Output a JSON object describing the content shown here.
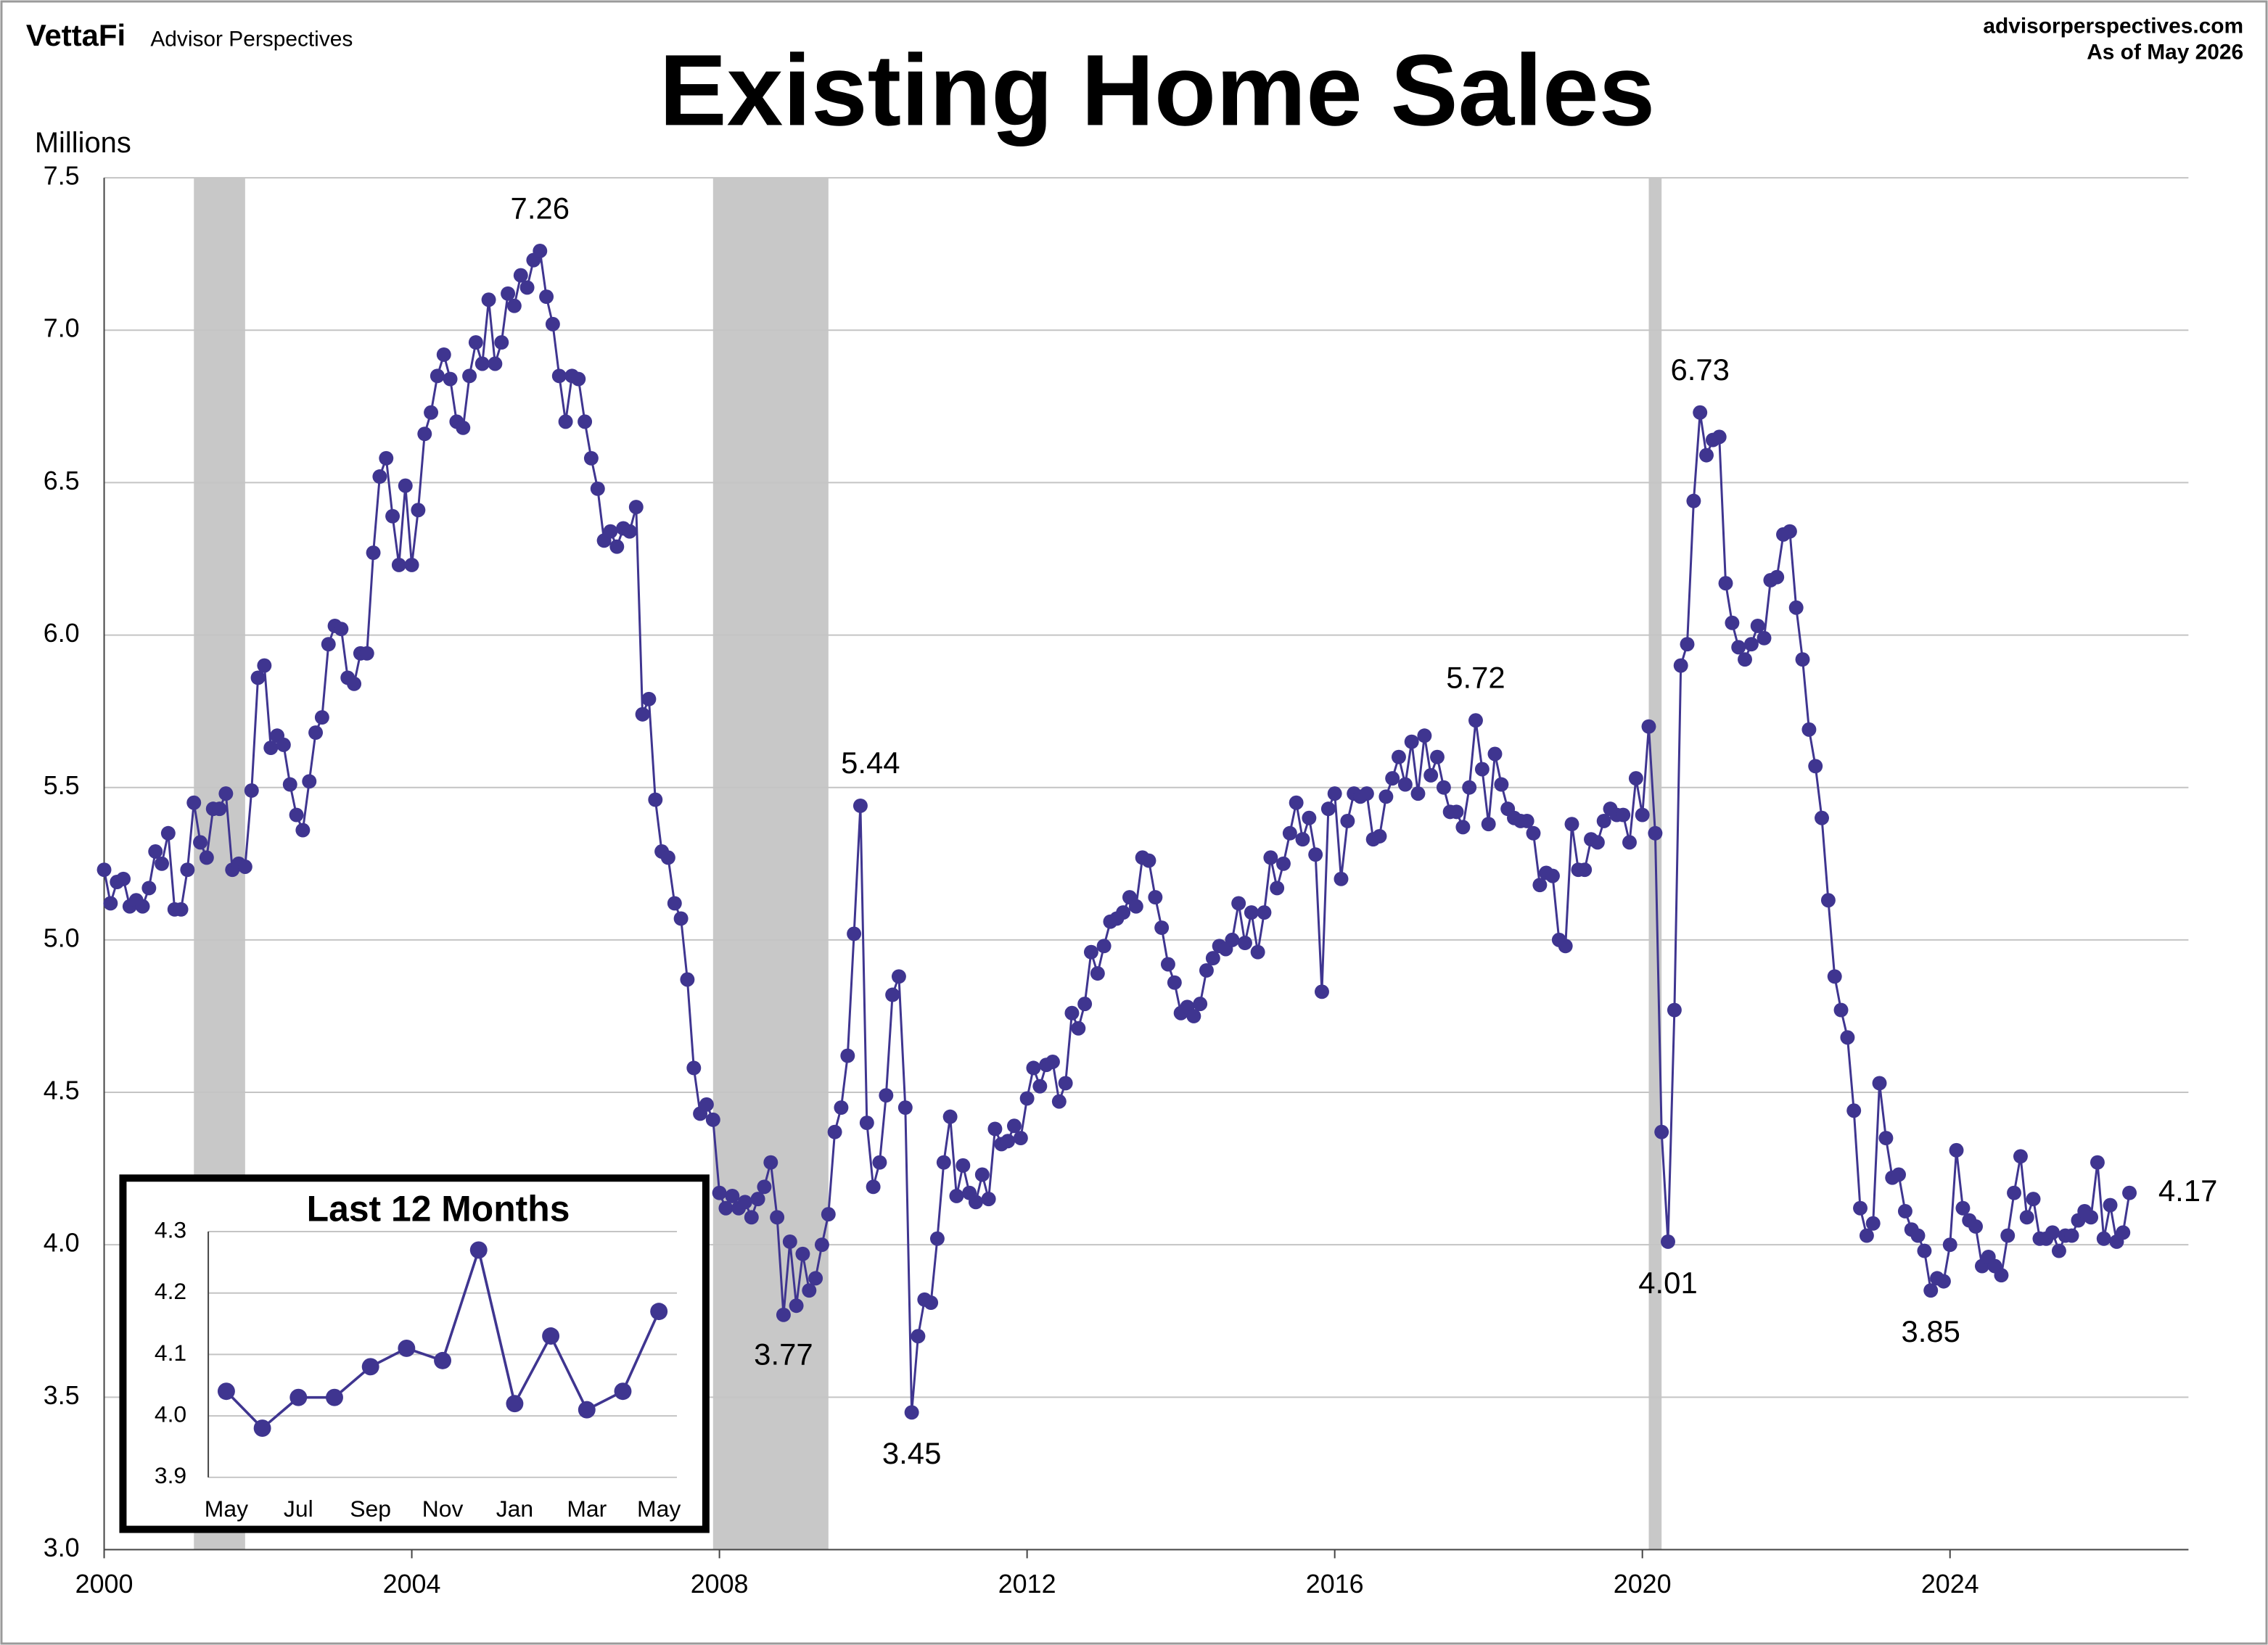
{
  "header": {
    "logo": "VettaFi",
    "brand": "Advisor Perspectives",
    "site": "advisorperspectives.com",
    "as_of": "As of May 2026"
  },
  "chart_data": [
    {
      "type": "line",
      "title": "Existing Home Sales",
      "y_label": "Millions",
      "color": "#3f3590",
      "xlim": [
        2000,
        2027.1
      ],
      "xticks": [
        2000,
        2004,
        2008,
        2012,
        2016,
        2020,
        2024
      ],
      "ylim": [
        3,
        7.5
      ],
      "yticks": [
        {
          "value": 3,
          "label": "3.0"
        },
        3.5,
        {
          "value": 4,
          "label": "4.0"
        },
        4.5,
        {
          "value": 5,
          "label": "5.0"
        },
        5.5,
        {
          "value": 6,
          "label": "6.0"
        },
        6.5,
        {
          "value": 7,
          "label": "7.0"
        },
        7.5
      ],
      "grid": true,
      "recessions": [
        [
          2001.167,
          2001.833
        ],
        [
          2007.917,
          2009.417
        ],
        [
          2020.083,
          2020.25
        ]
      ],
      "x": [
        2000,
        2000.083,
        2000.167,
        2000.25,
        2000.333,
        2000.417,
        2000.5,
        2000.583,
        2000.667,
        2000.75,
        2000.833,
        2000.917,
        2001,
        2001.083,
        2001.167,
        2001.25,
        2001.333,
        2001.417,
        2001.5,
        2001.583,
        2001.667,
        2001.75,
        2001.833,
        2001.917,
        2002,
        2002.083,
        2002.167,
        2002.25,
        2002.333,
        2002.417,
        2002.5,
        2002.583,
        2002.667,
        2002.75,
        2002.833,
        2002.917,
        2003,
        2003.083,
        2003.167,
        2003.25,
        2003.333,
        2003.417,
        2003.5,
        2003.583,
        2003.667,
        2003.75,
        2003.833,
        2003.917,
        2004,
        2004.083,
        2004.167,
        2004.25,
        2004.333,
        2004.417,
        2004.5,
        2004.583,
        2004.667,
        2004.75,
        2004.833,
        2004.917,
        2005,
        2005.083,
        2005.167,
        2005.25,
        2005.333,
        2005.417,
        2005.5,
        2005.583,
        2005.667,
        2005.75,
        2005.833,
        2005.917,
        2006,
        2006.083,
        2006.167,
        2006.25,
        2006.333,
        2006.417,
        2006.5,
        2006.583,
        2006.667,
        2006.75,
        2006.833,
        2006.917,
        2007,
        2007.083,
        2007.167,
        2007.25,
        2007.333,
        2007.417,
        2007.5,
        2007.583,
        2007.667,
        2007.75,
        2007.833,
        2007.917,
        2008,
        2008.083,
        2008.167,
        2008.25,
        2008.333,
        2008.417,
        2008.5,
        2008.583,
        2008.667,
        2008.75,
        2008.833,
        2008.917,
        2009,
        2009.083,
        2009.167,
        2009.25,
        2009.333,
        2009.417,
        2009.5,
        2009.583,
        2009.667,
        2009.75,
        2009.833,
        2009.917,
        2010,
        2010.083,
        2010.167,
        2010.25,
        2010.333,
        2010.417,
        2010.5,
        2010.583,
        2010.667,
        2010.75,
        2010.833,
        2010.917,
        2011,
        2011.083,
        2011.167,
        2011.25,
        2011.333,
        2011.417,
        2011.5,
        2011.583,
        2011.667,
        2011.75,
        2011.833,
        2011.917,
        2012,
        2012.083,
        2012.167,
        2012.25,
        2012.333,
        2012.417,
        2012.5,
        2012.583,
        2012.667,
        2012.75,
        2012.833,
        2012.917,
        2013,
        2013.083,
        2013.167,
        2013.25,
        2013.333,
        2013.417,
        2013.5,
        2013.583,
        2013.667,
        2013.75,
        2013.833,
        2013.917,
        2014,
        2014.083,
        2014.167,
        2014.25,
        2014.333,
        2014.417,
        2014.5,
        2014.583,
        2014.667,
        2014.75,
        2014.833,
        2014.917,
        2015,
        2015.083,
        2015.167,
        2015.25,
        2015.333,
        2015.417,
        2015.5,
        2015.583,
        2015.667,
        2015.75,
        2015.833,
        2015.917,
        2016,
        2016.083,
        2016.167,
        2016.25,
        2016.333,
        2016.417,
        2016.5,
        2016.583,
        2016.667,
        2016.75,
        2016.833,
        2016.917,
        2017,
        2017.083,
        2017.167,
        2017.25,
        2017.333,
        2017.417,
        2017.5,
        2017.583,
        2017.667,
        2017.75,
        2017.833,
        2017.917,
        2018,
        2018.083,
        2018.167,
        2018.25,
        2018.333,
        2018.417,
        2018.5,
        2018.583,
        2018.667,
        2018.75,
        2018.833,
        2018.917,
        2019,
        2019.083,
        2019.167,
        2019.25,
        2019.333,
        2019.417,
        2019.5,
        2019.583,
        2019.667,
        2019.75,
        2019.833,
        2019.917,
        2020,
        2020.083,
        2020.167,
        2020.25,
        2020.333,
        2020.417,
        2020.5,
        2020.583,
        2020.667,
        2020.75,
        2020.833,
        2020.917,
        2021,
        2021.083,
        2021.167,
        2021.25,
        2021.333,
        2021.417,
        2021.5,
        2021.583,
        2021.667,
        2021.75,
        2021.833,
        2021.917,
        2022,
        2022.083,
        2022.167,
        2022.25,
        2022.333,
        2022.417,
        2022.5,
        2022.583,
        2022.667,
        2022.75,
        2022.833,
        2022.917,
        2023,
        2023.083,
        2023.167,
        2023.25,
        2023.333,
        2023.417,
        2023.5,
        2023.583,
        2023.667,
        2023.75,
        2023.833,
        2023.917,
        2024,
        2024.083,
        2024.167,
        2024.25,
        2024.333,
        2024.417,
        2024.5,
        2024.583,
        2024.667,
        2024.75,
        2024.833,
        2024.917,
        2025,
        2025.083,
        2025.167,
        2025.25,
        2025.333,
        2025.417,
        2025.5,
        2025.583,
        2025.667,
        2025.75,
        2025.833,
        2025.917,
        2026,
        2026.083,
        2026.167,
        2026.25,
        2026.333
      ],
      "values": [
        5.23,
        5.12,
        5.19,
        5.2,
        5.11,
        5.13,
        5.11,
        5.17,
        5.29,
        5.25,
        5.35,
        5.1,
        5.1,
        5.23,
        5.45,
        5.32,
        5.27,
        5.43,
        5.43,
        5.48,
        5.23,
        5.25,
        5.24,
        5.49,
        5.86,
        5.9,
        5.63,
        5.67,
        5.64,
        5.51,
        5.41,
        5.36,
        5.52,
        5.68,
        5.73,
        5.97,
        6.03,
        6.02,
        5.86,
        5.84,
        5.94,
        5.94,
        6.27,
        6.52,
        6.58,
        6.39,
        6.23,
        6.49,
        6.23,
        6.41,
        6.66,
        6.73,
        6.85,
        6.92,
        6.84,
        6.7,
        6.68,
        6.85,
        6.96,
        6.89,
        7.1,
        6.89,
        6.96,
        7.12,
        7.08,
        7.18,
        7.14,
        7.23,
        7.26,
        7.11,
        7.02,
        6.85,
        6.7,
        6.85,
        6.84,
        6.7,
        6.58,
        6.48,
        6.31,
        6.34,
        6.29,
        6.35,
        6.34,
        6.42,
        5.74,
        5.79,
        5.46,
        5.29,
        5.27,
        5.12,
        5.07,
        4.87,
        4.58,
        4.43,
        4.46,
        4.41,
        4.17,
        4.12,
        4.16,
        4.12,
        4.14,
        4.09,
        4.15,
        4.19,
        4.27,
        4.09,
        3.77,
        4.01,
        3.8,
        3.97,
        3.85,
        3.89,
        4.0,
        4.1,
        4.37,
        4.45,
        4.62,
        5.02,
        5.44,
        4.4,
        4.19,
        4.27,
        4.49,
        4.82,
        4.88,
        4.45,
        3.45,
        3.7,
        3.82,
        3.81,
        4.02,
        4.27,
        4.42,
        4.16,
        4.26,
        4.17,
        4.14,
        4.23,
        4.15,
        4.38,
        4.33,
        4.34,
        4.39,
        4.35,
        4.48,
        4.58,
        4.52,
        4.59,
        4.6,
        4.47,
        4.53,
        4.76,
        4.71,
        4.79,
        4.96,
        4.89,
        4.98,
        5.06,
        5.07,
        5.09,
        5.14,
        5.11,
        5.27,
        5.26,
        5.14,
        5.04,
        4.92,
        4.86,
        4.76,
        4.78,
        4.75,
        4.79,
        4.9,
        4.94,
        4.98,
        4.97,
        5.0,
        5.12,
        4.99,
        5.09,
        4.96,
        5.09,
        5.27,
        5.17,
        5.25,
        5.35,
        5.45,
        5.33,
        5.4,
        5.28,
        4.83,
        5.43,
        5.48,
        5.2,
        5.39,
        5.48,
        5.47,
        5.48,
        5.33,
        5.34,
        5.47,
        5.53,
        5.6,
        5.51,
        5.65,
        5.48,
        5.67,
        5.54,
        5.6,
        5.5,
        5.42,
        5.42,
        5.37,
        5.5,
        5.72,
        5.56,
        5.38,
        5.61,
        5.51,
        5.43,
        5.4,
        5.39,
        5.39,
        5.35,
        5.18,
        5.22,
        5.21,
        5.0,
        4.98,
        5.38,
        5.23,
        5.23,
        5.33,
        5.32,
        5.39,
        5.43,
        5.41,
        5.41,
        5.32,
        5.53,
        5.41,
        5.7,
        5.35,
        4.37,
        4.01,
        4.77,
        5.9,
        5.97,
        6.44,
        6.73,
        6.59,
        6.64,
        6.65,
        6.17,
        6.04,
        5.96,
        5.92,
        5.97,
        6.03,
        5.99,
        6.18,
        6.19,
        6.33,
        6.34,
        6.09,
        5.92,
        5.69,
        5.57,
        5.4,
        5.13,
        4.88,
        4.77,
        4.68,
        4.44,
        4.12,
        4.03,
        4.07,
        4.53,
        4.35,
        4.22,
        4.23,
        4.11,
        4.05,
        4.03,
        3.98,
        3.85,
        3.89,
        3.88,
        4.0,
        4.31,
        4.12,
        4.08,
        4.06,
        3.93,
        3.96,
        3.93,
        3.9,
        4.03,
        4.17,
        4.29,
        4.09,
        4.15,
        4.02,
        4.02,
        4.04,
        3.98,
        4.03,
        4.03,
        4.08,
        4.11,
        4.09,
        4.27,
        4.02,
        4.13,
        4.01,
        4.04,
        4.17
      ],
      "annotations": [
        {
          "x": 2005.667,
          "value": 7.26
        },
        {
          "x": 2020.75,
          "value": 6.73
        },
        {
          "x": 2017.833,
          "value": 5.72
        },
        {
          "x": 2009.833,
          "value": 5.44
        },
        {
          "x": 2008.833,
          "value": 3.77
        },
        {
          "x": 2010.5,
          "value": 3.45
        },
        {
          "x": 2020.333,
          "value": 4.01
        },
        {
          "x": 2023.75,
          "value": 3.85
        },
        {
          "x": 2026.333,
          "value": 4.17
        }
      ]
    },
    {
      "type": "line",
      "title": "Last 12 Months",
      "color": "#3f3590",
      "categories": [
        "May",
        null,
        "Jul",
        null,
        "Sep",
        null,
        "Nov",
        null,
        "Jan",
        null,
        "Mar",
        null,
        "May"
      ],
      "values": [
        4.04,
        3.98,
        4.03,
        4.03,
        4.08,
        4.11,
        4.09,
        4.27,
        4.02,
        4.13,
        4.01,
        4.04,
        4.17
      ],
      "ylim": [
        3.9,
        4.3
      ],
      "yticks": [
        3.9,
        {
          "value": 4,
          "label": "4.0"
        },
        4.1,
        4.2,
        4.3
      ],
      "grid": true
    }
  ]
}
